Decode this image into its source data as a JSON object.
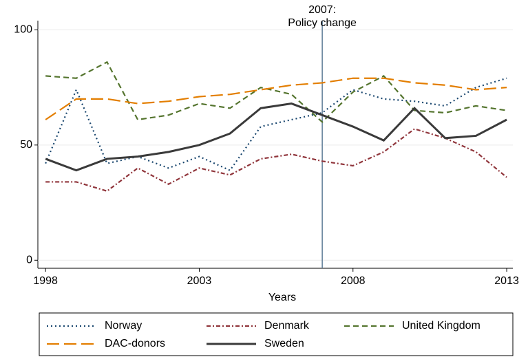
{
  "chart_data": {
    "type": "line",
    "x_label": "Years",
    "x": [
      1998,
      1999,
      2000,
      2001,
      2002,
      2003,
      2004,
      2005,
      2006,
      2007,
      2008,
      2009,
      2010,
      2011,
      2012,
      2013
    ],
    "xlim": [
      1997.75,
      2013.2
    ],
    "xticks": [
      1998,
      2003,
      2008,
      2013
    ],
    "ylim": [
      -3.5,
      104
    ],
    "yticks": [
      0,
      50,
      100
    ],
    "grid": true,
    "annotation": {
      "x": 2007,
      "lines": [
        "2007:",
        "Policy change"
      ]
    },
    "series": [
      {
        "name": "Norway",
        "color": "#1a476f",
        "style": "dotted",
        "values": [
          42,
          74,
          42,
          45,
          40,
          45,
          39,
          58,
          61,
          64,
          74,
          70,
          69,
          67,
          75,
          79
        ]
      },
      {
        "name": "Denmark",
        "color": "#90353b",
        "style": "dashdot",
        "values": [
          34,
          34,
          30,
          40,
          33,
          40,
          37,
          44,
          46,
          43,
          41,
          47,
          57,
          53,
          47,
          36
        ]
      },
      {
        "name": "United Kingdom",
        "color": "#55752f",
        "style": "dashed",
        "values": [
          80,
          79,
          86,
          61,
          63,
          68,
          66,
          75,
          72,
          60,
          73,
          80,
          65,
          64,
          67,
          65
        ]
      },
      {
        "name": "DAC-donors",
        "color": "#e37e00",
        "style": "longdash",
        "values": [
          61,
          70,
          70,
          68,
          69,
          71,
          72,
          74,
          76,
          77,
          79,
          79,
          77,
          76,
          74,
          75
        ]
      },
      {
        "name": "Sweden",
        "color": "#3a3a3a",
        "style": "solid",
        "values": [
          44,
          39,
          44,
          45,
          47,
          50,
          55,
          66,
          68,
          63,
          58,
          52,
          66,
          53,
          54,
          61
        ]
      }
    ]
  }
}
